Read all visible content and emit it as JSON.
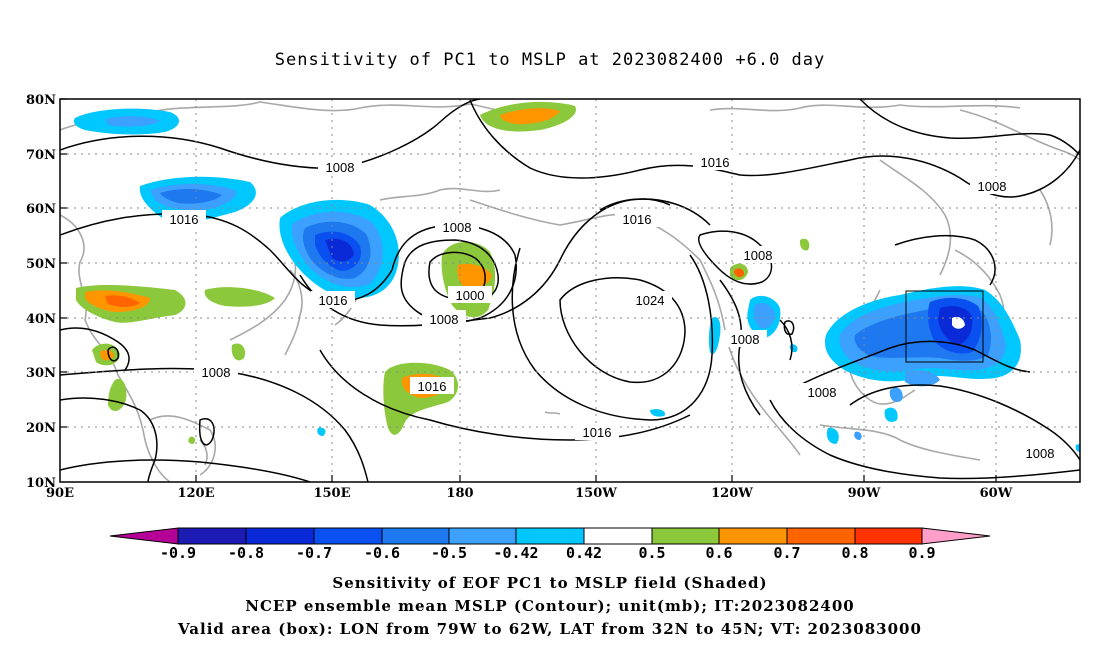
{
  "title": "Sensitivity of PC1 to MSLP at 2023082400 +6.0 day",
  "map": {
    "lat_labels": [
      "80N",
      "70N",
      "60N",
      "50N",
      "40N",
      "30N",
      "20N",
      "10N"
    ],
    "lon_labels": [
      "90E",
      "120E",
      "150E",
      "180",
      "150W",
      "120W",
      "90W",
      "60W"
    ],
    "contour_labels": [
      "1008",
      "1016",
      "1016",
      "1008",
      "1008",
      "1016",
      "1008",
      "1016",
      "1000",
      "1008",
      "1024",
      "1008",
      "1008",
      "1008",
      "1016",
      "1016"
    ],
    "valid_box": {
      "lon_range": "79W to 62W",
      "lat_range": "32N to 45N"
    }
  },
  "colorbar": {
    "labels": [
      "-0.9",
      "-0.8",
      "-0.7",
      "-0.6",
      "-0.5",
      "-0.42",
      "0.42",
      "0.5",
      "0.6",
      "0.7",
      "0.8",
      "0.9"
    ],
    "colors": [
      "#1c1cb4",
      "#0a2ad8",
      "#0a50f0",
      "#1e78f0",
      "#3ca0ff",
      "#00c8ff",
      "#ffffff",
      "#8cc83c",
      "#ff9600",
      "#ff6400",
      "#ff3200",
      "#ff0000"
    ],
    "end_left_color": "#b40096",
    "end_right_color": "#ff9ec8"
  },
  "captions": [
    "Sensitivity of EOF PC1 to MSLP field (Shaded)",
    "NCEP ensemble mean MSLP (Contour); unit(mb); IT:2023082400",
    "Valid area (box): LON from 79W to 62W, LAT from 32N to 45N; VT: 2023083000"
  ]
}
